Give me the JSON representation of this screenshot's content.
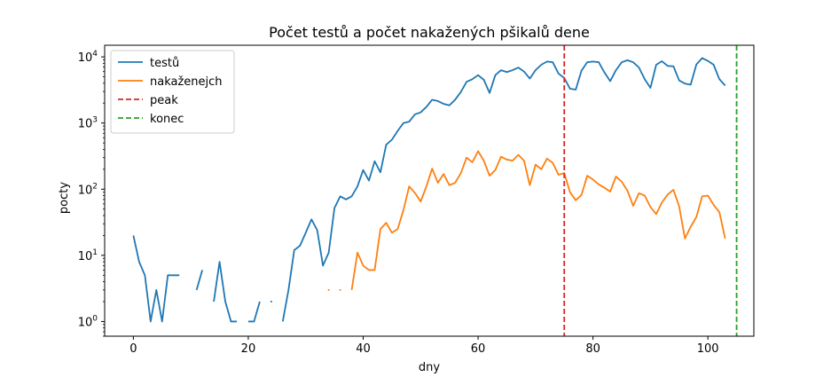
{
  "chart_data": {
    "type": "line",
    "title": "Počet testů a počet nakažených pšikalů dene",
    "xlabel": "dny",
    "ylabel": "pocty",
    "xlim": [
      -5,
      108
    ],
    "ylim": [
      0.6,
      15000
    ],
    "y_scale": "log",
    "x_ticks": [
      0,
      20,
      40,
      60,
      80,
      100
    ],
    "x_tick_labels": [
      "0",
      "20",
      "40",
      "60",
      "80",
      "100"
    ],
    "y_ticks": [
      1,
      10,
      100,
      1000,
      10000
    ],
    "y_tick_labels": [
      {
        "base": "10",
        "exp": "0"
      },
      {
        "base": "10",
        "exp": "1"
      },
      {
        "base": "10",
        "exp": "2"
      },
      {
        "base": "10",
        "exp": "3"
      },
      {
        "base": "10",
        "exp": "4"
      }
    ],
    "legend_position": "top-left",
    "grid": false,
    "series": [
      {
        "name": "testů",
        "color": "#1f77b4",
        "x": [
          0,
          1,
          2,
          3,
          4,
          5,
          6,
          7,
          8,
          9,
          10,
          11,
          12,
          13,
          14,
          15,
          16,
          17,
          18,
          19,
          20,
          21,
          22,
          23,
          24,
          25,
          26,
          27,
          28,
          29,
          30,
          31,
          32,
          33,
          34,
          35,
          36,
          37,
          38,
          39,
          40,
          41,
          42,
          43,
          44,
          45,
          46,
          47,
          48,
          49,
          50,
          51,
          52,
          53,
          54,
          55,
          56,
          57,
          58,
          59,
          60,
          61,
          62,
          63,
          64,
          65,
          66,
          67,
          68,
          69,
          70,
          71,
          72,
          73,
          74,
          75,
          76,
          77,
          78,
          79,
          80,
          81,
          82,
          83,
          84,
          85,
          86,
          87,
          88,
          89,
          90,
          91,
          92,
          93,
          94,
          95,
          96,
          97,
          98,
          99,
          100,
          101,
          102,
          103
        ],
        "values": [
          20,
          8,
          5,
          1,
          3,
          1,
          5,
          5,
          5,
          0,
          0,
          3,
          6,
          0,
          2,
          8,
          2,
          1,
          1,
          0,
          1,
          1,
          2,
          0,
          2,
          0,
          1,
          3,
          12,
          14,
          22,
          35,
          24,
          7,
          11,
          52,
          78,
          70,
          78,
          110,
          195,
          135,
          265,
          180,
          470,
          560,
          760,
          1000,
          1050,
          1350,
          1450,
          1750,
          2250,
          2150,
          1950,
          1850,
          2250,
          2950,
          4200,
          4600,
          5300,
          4500,
          2850,
          5300,
          6300,
          5900,
          6300,
          6900,
          6000,
          4700,
          6300,
          7600,
          8500,
          8300,
          5600,
          4800,
          3300,
          3200,
          6200,
          8300,
          8500,
          8300,
          5800,
          4300,
          6300,
          8300,
          8900,
          8300,
          6900,
          4600,
          3400,
          7600,
          8600,
          7300,
          7200,
          4400,
          3950,
          3800,
          7700,
          9600,
          8700,
          7600,
          4600,
          3700
        ]
      },
      {
        "name": "nakaženejch",
        "color": "#ff7f0e",
        "x": [
          34,
          35,
          36,
          37,
          38,
          39,
          40,
          41,
          42,
          43,
          44,
          45,
          46,
          47,
          48,
          49,
          50,
          51,
          52,
          53,
          54,
          55,
          56,
          57,
          58,
          59,
          60,
          61,
          62,
          63,
          64,
          65,
          66,
          67,
          68,
          69,
          70,
          71,
          72,
          73,
          74,
          75,
          76,
          77,
          78,
          79,
          80,
          81,
          82,
          83,
          84,
          85,
          86,
          87,
          88,
          89,
          90,
          91,
          92,
          93,
          94,
          95,
          96,
          97,
          98,
          99,
          100,
          101,
          102,
          103
        ],
        "values": [
          3,
          0,
          3,
          0,
          3,
          11,
          7,
          6,
          6,
          25,
          31,
          22,
          25,
          48,
          110,
          88,
          65,
          110,
          205,
          125,
          170,
          115,
          125,
          175,
          300,
          255,
          375,
          270,
          160,
          195,
          310,
          280,
          270,
          330,
          270,
          115,
          235,
          200,
          290,
          250,
          165,
          175,
          90,
          68,
          82,
          160,
          140,
          118,
          105,
          92,
          155,
          130,
          95,
          56,
          87,
          80,
          54,
          42,
          63,
          83,
          98,
          55,
          18,
          27,
          38,
          78,
          80,
          58,
          45,
          18
        ]
      }
    ],
    "vlines": [
      {
        "name": "peak",
        "x": 75,
        "color": "#d62728",
        "style": "dashed"
      },
      {
        "name": "konec",
        "x": 105,
        "color": "#2ca02c",
        "style": "dashed"
      }
    ]
  }
}
